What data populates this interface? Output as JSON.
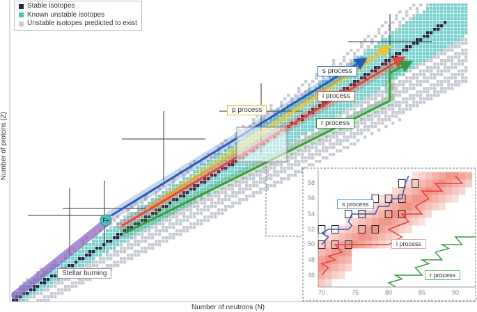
{
  "legend": [
    {
      "label": "Stable isotopes",
      "color": "#1e2a44"
    },
    {
      "label": "Known unstable isotopes",
      "color": "#4cc2c0"
    },
    {
      "label": "Unstable isotopes predicted to exist",
      "color": "#c8cbd3"
    }
  ],
  "axes": {
    "x_label": "Number of neutrons (N)",
    "y_label": "Number of protons (Z)"
  },
  "processes": {
    "p": {
      "label": "p process",
      "color": "#e8c531"
    },
    "s": {
      "label": "s process",
      "color": "#2a5bb5"
    },
    "i": {
      "label": "i process",
      "color": "#e8443a"
    },
    "r": {
      "label": "r process",
      "color": "#3a9a44"
    }
  },
  "annotations": {
    "fe": "Fe",
    "stellar": "Stellar burning"
  },
  "inset": {
    "x_ticks": [
      "70",
      "75",
      "80",
      "85",
      "90"
    ],
    "y_ticks": [
      "46",
      "48",
      "50",
      "52",
      "54",
      "56",
      "58"
    ],
    "s_label": "s process",
    "i_label": "i process",
    "r_label": "r process"
  }
}
